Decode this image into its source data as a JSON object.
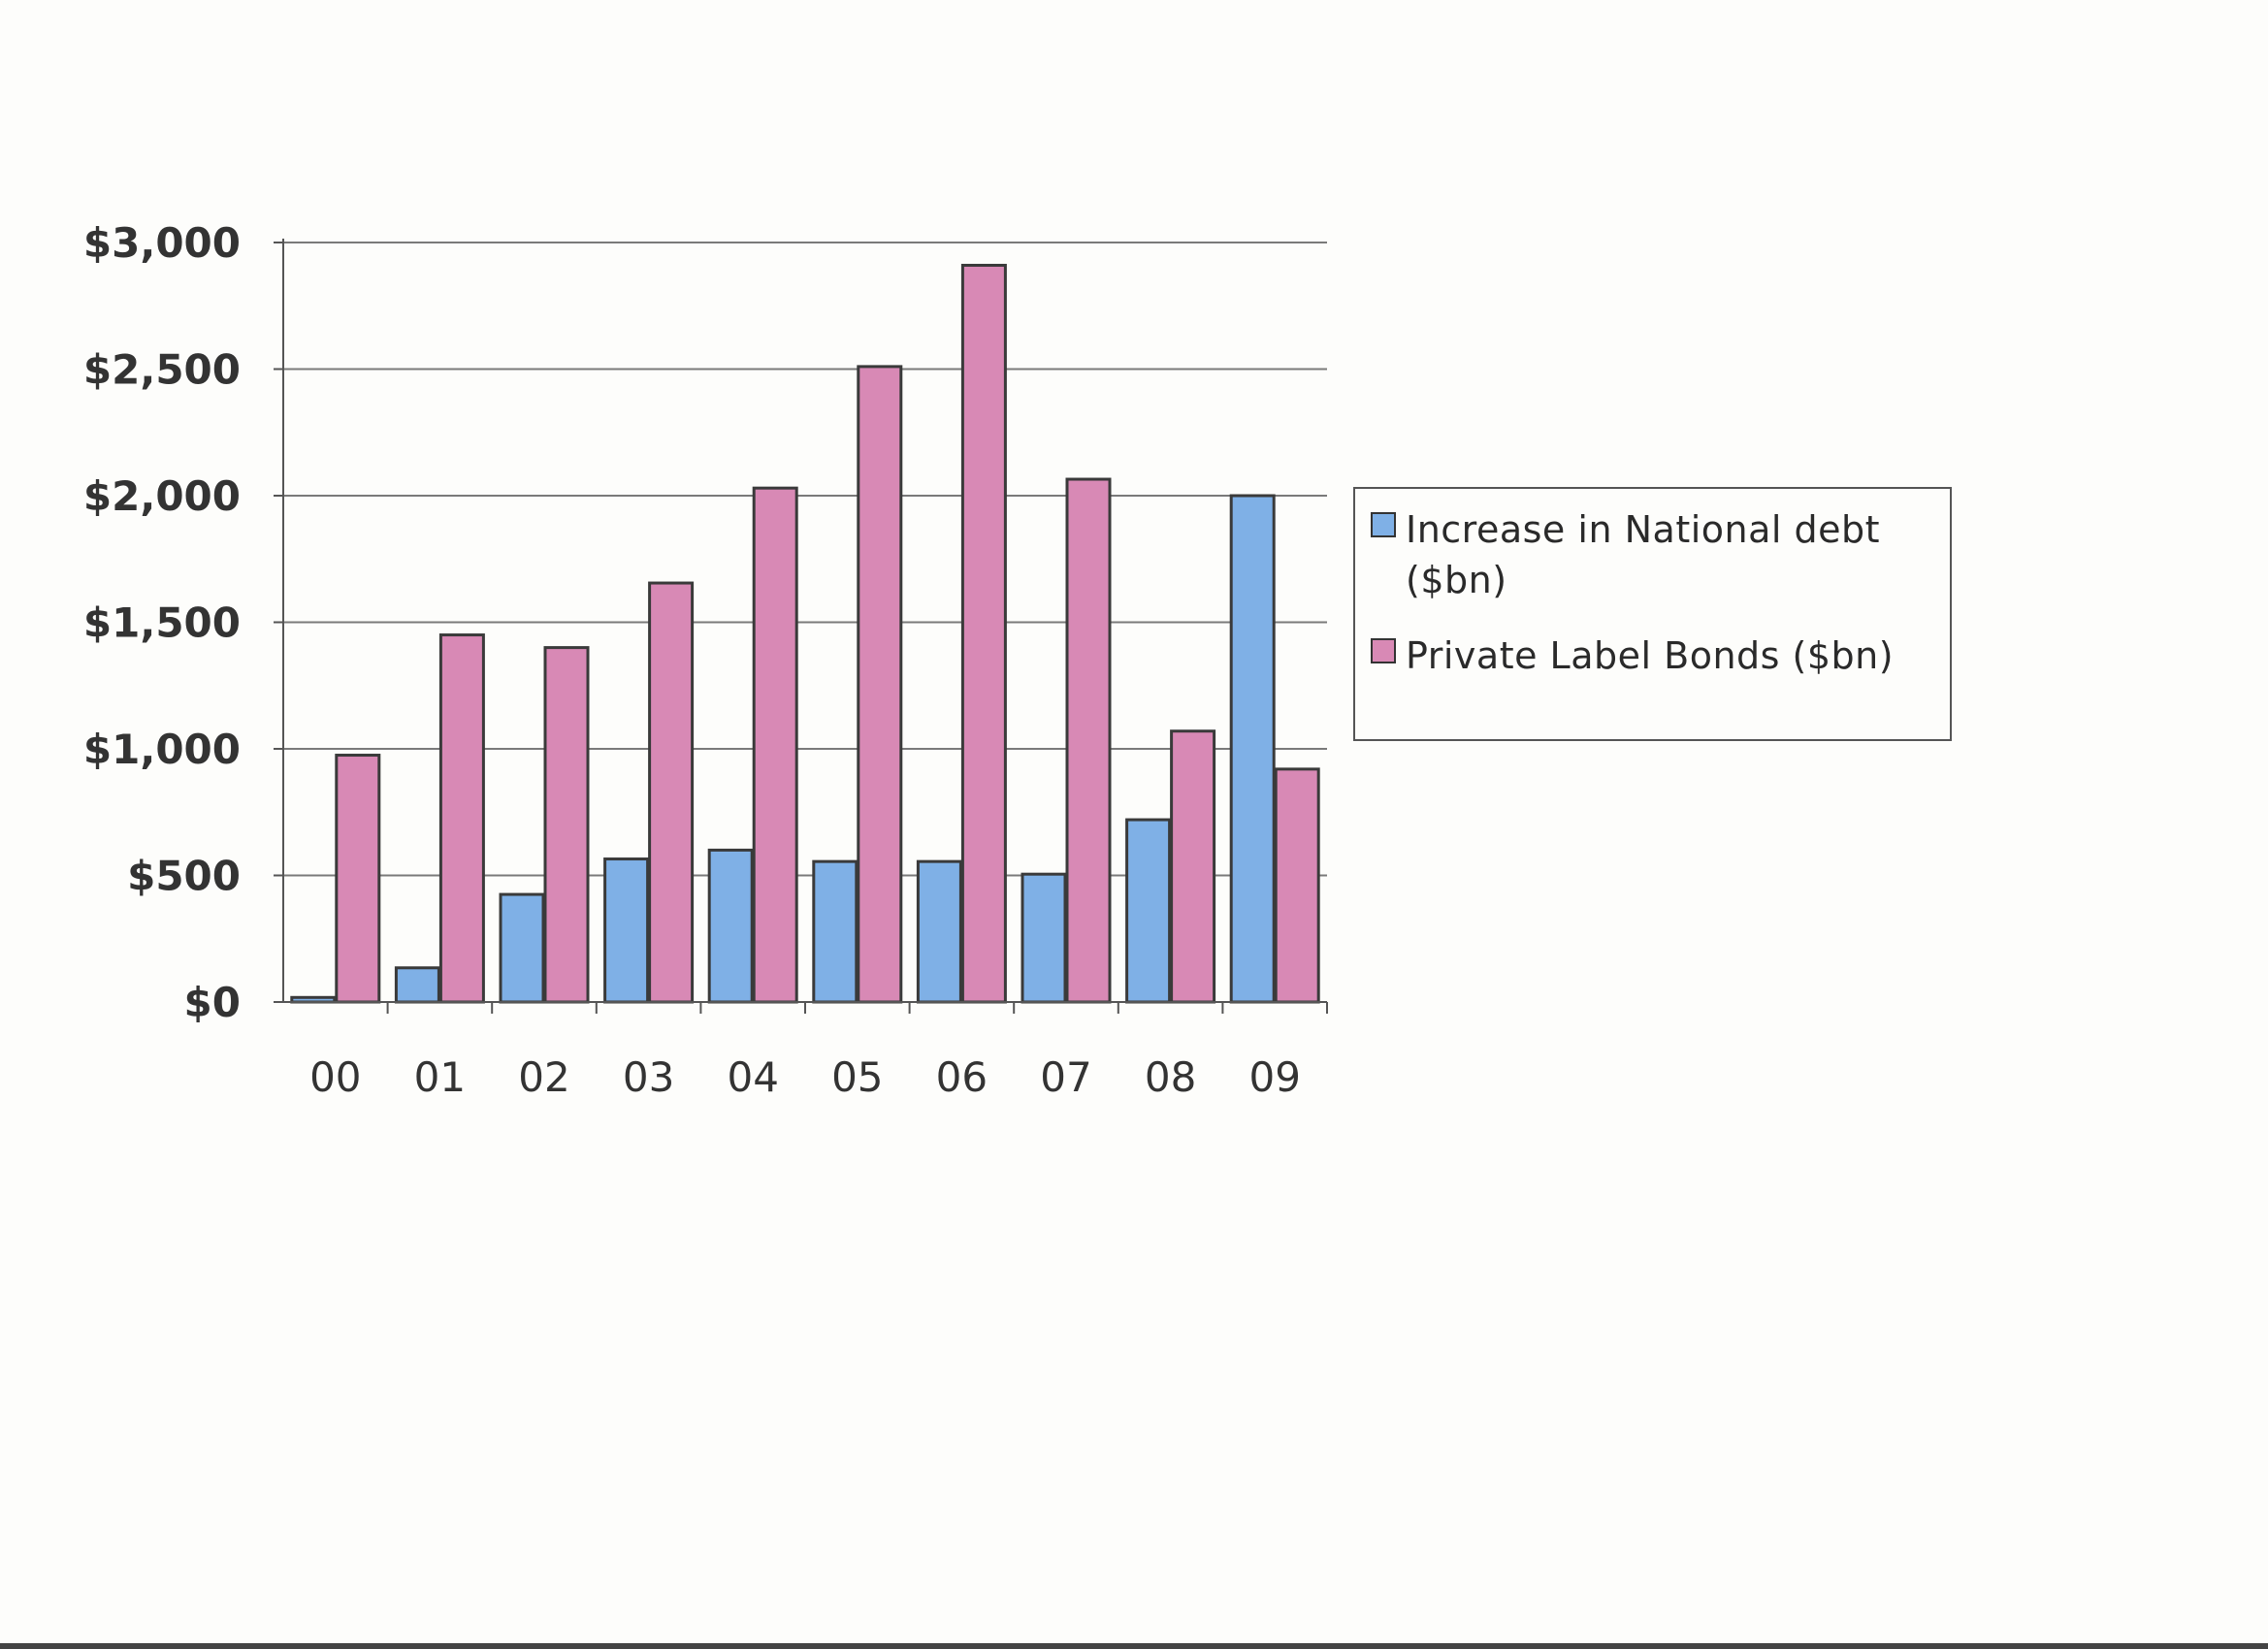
{
  "chart_data": {
    "type": "bar",
    "categories": [
      "00",
      "01",
      "02",
      "03",
      "04",
      "05",
      "06",
      "07",
      "08",
      "09"
    ],
    "series": [
      {
        "name": "Increase in National debt ($bn)",
        "color": "#7fb0e6",
        "values": [
          18,
          135,
          425,
          565,
          600,
          555,
          555,
          505,
          720,
          2000
        ]
      },
      {
        "name": "Private Label Bonds ($bn)",
        "color": "#d889b5",
        "values": [
          975,
          1450,
          1400,
          1655,
          2030,
          2510,
          2910,
          2065,
          1070,
          920
        ]
      }
    ],
    "yticks": [
      "$0",
      "$500",
      "$1,000",
      "$1,500",
      "$2,000",
      "$2,500",
      "$3,000"
    ],
    "ylim": [
      0,
      3000
    ],
    "grid": true,
    "legend_position": "right",
    "title": "",
    "xlabel": "",
    "ylabel": ""
  },
  "legend": {
    "items": [
      {
        "label_line1": "Increase in National debt",
        "label_line2": "($bn)"
      },
      {
        "label_line1": "Private Label Bonds ($bn)"
      }
    ]
  }
}
